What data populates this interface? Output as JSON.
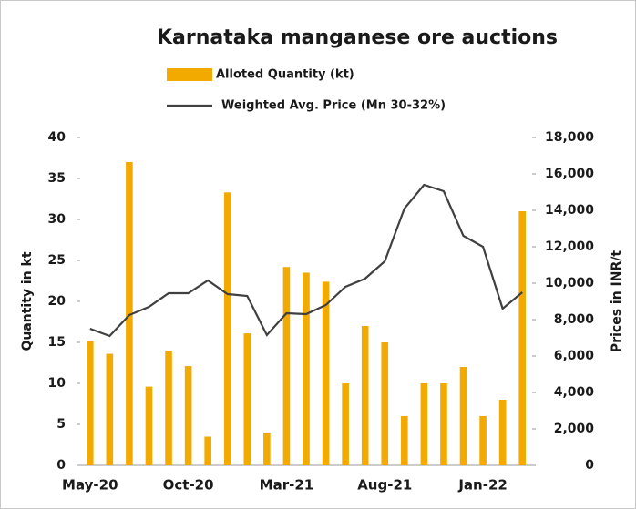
{
  "chart_data": {
    "type": "bar_line",
    "title": "Karnataka manganese ore auctions",
    "y_label": "Quantity in kt",
    "y2_label": "Prices in INR/t",
    "categories": [
      "May-20",
      null,
      null,
      null,
      null,
      "Oct-20",
      null,
      null,
      null,
      null,
      "Mar-21",
      null,
      null,
      null,
      null,
      "Aug-21",
      null,
      null,
      null,
      null,
      "Jan-22",
      null,
      null
    ],
    "series": [
      {
        "name": "Alloted Quantity (kt)",
        "kind": "bar",
        "color": "#f2a900",
        "axis": "y",
        "values": [
          15.2,
          13.6,
          37,
          9.6,
          14,
          12.1,
          3.5,
          33.3,
          16.1,
          4,
          24.2,
          23.5,
          22.4,
          10,
          17,
          15,
          6,
          10,
          10,
          12,
          6,
          8,
          31
        ]
      },
      {
        "name": "Weighted Avg. Price (Mn 30-32%)",
        "kind": "line",
        "color": "#404040",
        "axis": "y2",
        "values": [
          7500,
          7100,
          8250,
          8700,
          9450,
          9450,
          10150,
          9400,
          9300,
          7150,
          8350,
          8300,
          8800,
          9800,
          10250,
          11200,
          14100,
          15400,
          15050,
          12600,
          12000,
          8600,
          9500
        ]
      }
    ],
    "ylim": [
      0,
      40
    ],
    "yticks": [
      0,
      5,
      10,
      15,
      20,
      25,
      30,
      35,
      40
    ],
    "y2lim": [
      0,
      18000
    ],
    "y2ticks": [
      0,
      {
        "value": 2000,
        "label": "2,000"
      },
      {
        "value": 4000,
        "label": "4,000"
      },
      {
        "value": 6000,
        "label": "6,000"
      },
      {
        "value": 8000,
        "label": "8,000"
      },
      {
        "value": 10000,
        "label": "10,000"
      },
      {
        "value": 12000,
        "label": "12,000"
      },
      {
        "value": 14000,
        "label": "14,000"
      },
      {
        "value": 16000,
        "label": "16,000"
      },
      {
        "value": 18000,
        "label": "18,000"
      }
    ]
  }
}
